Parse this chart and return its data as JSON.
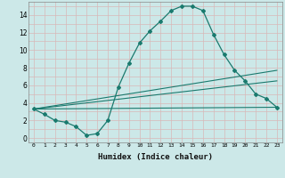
{
  "xlabel": "Humidex (Indice chaleur)",
  "background_color": "#cce8e8",
  "grid_color": "#e8c8c8",
  "line_color": "#1a7a6e",
  "xlim": [
    -0.5,
    23.5
  ],
  "ylim": [
    -0.5,
    15.5
  ],
  "xtick_labels": [
    "0",
    "1",
    "2",
    "3",
    "4",
    "5",
    "6",
    "7",
    "8",
    "9",
    "10",
    "11",
    "12",
    "13",
    "14",
    "15",
    "16",
    "17",
    "18",
    "19",
    "20",
    "21",
    "22",
    "23"
  ],
  "ytick_values": [
    0,
    2,
    4,
    6,
    8,
    10,
    12,
    14
  ],
  "series": [
    {
      "x": [
        0,
        1,
        2,
        3,
        4,
        5,
        6,
        7,
        8,
        9,
        10,
        11,
        12,
        13,
        14,
        15,
        16,
        17,
        18,
        19,
        20,
        21,
        22,
        23
      ],
      "y": [
        3.3,
        2.7,
        2.0,
        1.8,
        1.3,
        0.3,
        0.5,
        2.0,
        5.8,
        8.5,
        10.8,
        12.2,
        13.3,
        14.5,
        15.0,
        15.0,
        14.5,
        11.8,
        9.5,
        7.7,
        6.5,
        5.0,
        4.5,
        3.5
      ]
    },
    {
      "x": [
        0,
        23
      ],
      "y": [
        3.3,
        3.5
      ]
    },
    {
      "x": [
        0,
        23
      ],
      "y": [
        3.3,
        6.5
      ]
    },
    {
      "x": [
        0,
        23
      ],
      "y": [
        3.3,
        7.7
      ]
    }
  ]
}
